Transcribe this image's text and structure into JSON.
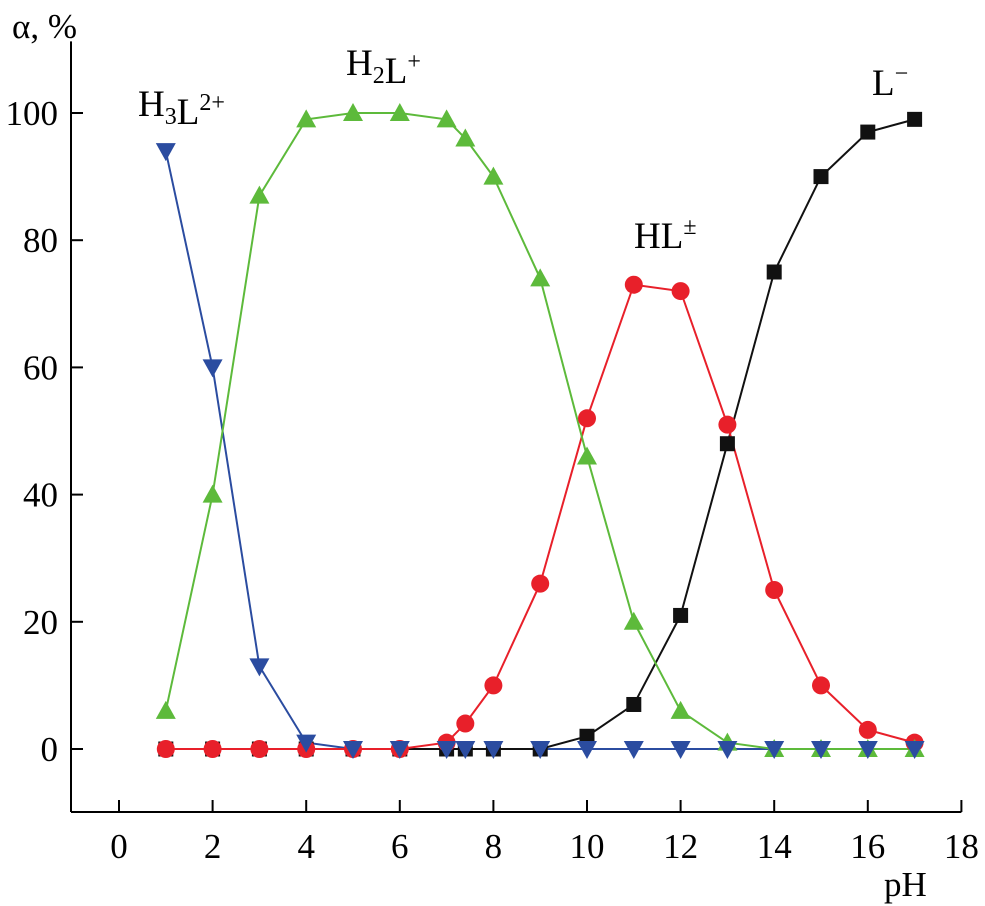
{
  "chart_data": {
    "type": "line",
    "xlabel": "pH",
    "ylabel": "α, %",
    "xlim": [
      -1,
      18
    ],
    "ylim": [
      -10,
      110
    ],
    "xticks": [
      0,
      2,
      4,
      6,
      8,
      10,
      12,
      14,
      16,
      18
    ],
    "yticks": [
      0,
      20,
      40,
      60,
      80,
      100
    ],
    "grid": false,
    "series": [
      {
        "name": "H3L2+",
        "label_base": "H",
        "label_parts": [
          {
            "text": "H",
            "sub": "3",
            "sup": ""
          },
          {
            "text": "L",
            "sub": "",
            "sup": "2+"
          }
        ],
        "color": "#2b4ca0",
        "marker": "triangle-down",
        "points": [
          [
            1,
            94
          ],
          [
            2,
            60
          ],
          [
            3,
            13
          ],
          [
            4,
            1
          ],
          [
            5,
            0
          ],
          [
            6,
            0
          ],
          [
            7,
            0
          ],
          [
            7.4,
            0
          ],
          [
            8,
            0
          ],
          [
            9,
            0
          ],
          [
            10,
            0
          ],
          [
            11,
            0
          ],
          [
            12,
            0
          ],
          [
            13,
            0
          ],
          [
            14,
            0
          ],
          [
            15,
            0
          ],
          [
            16,
            0
          ],
          [
            17,
            0
          ]
        ]
      },
      {
        "name": "H2L+",
        "label_parts": [
          {
            "text": "H",
            "sub": "2",
            "sup": ""
          },
          {
            "text": "L",
            "sub": "",
            "sup": "+"
          }
        ],
        "color": "#5dba3b",
        "marker": "triangle-up",
        "points": [
          [
            1,
            6
          ],
          [
            2,
            40
          ],
          [
            3,
            87
          ],
          [
            4,
            99
          ],
          [
            5,
            100
          ],
          [
            6,
            100
          ],
          [
            7,
            99
          ],
          [
            7.4,
            96
          ],
          [
            8,
            90
          ],
          [
            9,
            74
          ],
          [
            10,
            46
          ],
          [
            11,
            20
          ],
          [
            12,
            6
          ],
          [
            13,
            1
          ],
          [
            14,
            0
          ],
          [
            15,
            0
          ],
          [
            16,
            0
          ],
          [
            17,
            0
          ]
        ]
      },
      {
        "name": "HL±",
        "label_parts": [
          {
            "text": "HL",
            "sub": "",
            "sup": "±"
          }
        ],
        "color": "#e8202a",
        "marker": "circle",
        "points": [
          [
            1,
            0
          ],
          [
            2,
            0
          ],
          [
            3,
            0
          ],
          [
            4,
            0
          ],
          [
            5,
            0
          ],
          [
            6,
            0
          ],
          [
            7,
            1
          ],
          [
            7.4,
            4
          ],
          [
            8,
            10
          ],
          [
            9,
            26
          ],
          [
            10,
            52
          ],
          [
            11,
            73
          ],
          [
            12,
            72
          ],
          [
            13,
            51
          ],
          [
            14,
            25
          ],
          [
            15,
            10
          ],
          [
            16,
            3
          ],
          [
            17,
            1
          ]
        ]
      },
      {
        "name": "L−",
        "label_parts": [
          {
            "text": "L",
            "sub": "",
            "sup": "−"
          }
        ],
        "color": "#111111",
        "marker": "square",
        "points": [
          [
            1,
            0
          ],
          [
            2,
            0
          ],
          [
            3,
            0
          ],
          [
            4,
            0
          ],
          [
            5,
            0
          ],
          [
            6,
            0
          ],
          [
            7,
            0
          ],
          [
            7.4,
            0
          ],
          [
            8,
            0
          ],
          [
            9,
            0
          ],
          [
            10,
            2
          ],
          [
            11,
            7
          ],
          [
            12,
            21
          ],
          [
            13,
            48
          ],
          [
            14,
            75
          ],
          [
            15,
            90
          ],
          [
            16,
            97
          ],
          [
            17,
            99
          ]
        ]
      }
    ]
  }
}
